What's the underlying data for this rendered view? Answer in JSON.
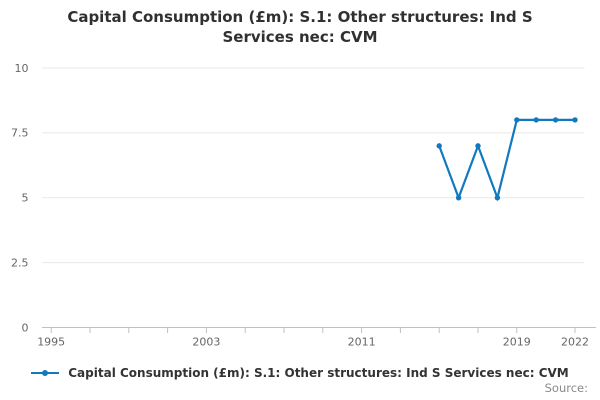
{
  "page": {
    "title": "Capital Consumption (£m): S.1: Other structures: Ind S Services nec: CVM",
    "source_label": "Source:"
  },
  "legend": {
    "label": "Capital Consumption (£m): S.1: Other structures: Ind S Services nec: CVM"
  },
  "colors": {
    "series": "#1279be",
    "grid": "#e8e8e8",
    "axis": "#b7c3d0",
    "tick_label": "#666666",
    "title": "#303030",
    "legend_text": "#333333",
    "source_text": "#8a8a8a"
  },
  "chart_data": {
    "type": "line",
    "title": "Capital Consumption (£m): S.1: Other structures: Ind S Services nec: CVM",
    "x": [
      2015,
      2016,
      2017,
      2018,
      2019,
      2020,
      2021,
      2022
    ],
    "series": [
      {
        "name": "Capital Consumption (£m): S.1: Other structures: Ind S Services nec: CVM",
        "values": [
          7,
          5,
          7,
          5,
          8,
          8,
          8,
          8
        ]
      }
    ],
    "xlim": [
      1995,
      2022
    ],
    "ylim": [
      0,
      10
    ],
    "yticks": {
      "values": [
        0,
        2.5,
        5,
        7.5,
        10
      ],
      "labels": [
        "0",
        "2.5",
        "5",
        "7.5",
        "10"
      ]
    },
    "xticks": {
      "values": [
        1995,
        2003,
        2011,
        2019,
        2022
      ],
      "labels": [
        "1995",
        "2003",
        "2011",
        "2019",
        "2022"
      ]
    },
    "xticks_minor": [
      1995,
      1997,
      1999,
      2001,
      2003,
      2005,
      2007,
      2009,
      2011,
      2013,
      2015,
      2017,
      2019,
      2022
    ],
    "grid": "horizontal",
    "legend_position": "bottom",
    "markers": true
  }
}
